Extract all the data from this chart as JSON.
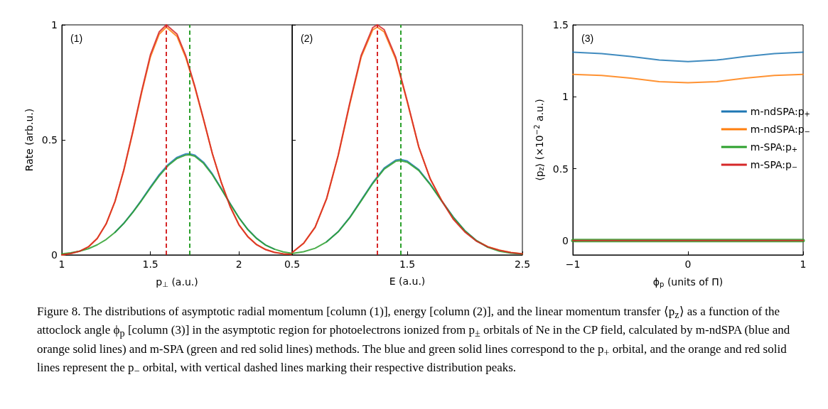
{
  "chart_data": [
    {
      "type": "line",
      "xlabel": "p$_{⊥}$ (a.u.)",
      "ylabel": "Rate (arb.u.)",
      "annotations": [
        "(1)",
        "Figure 8. The distributions of asymptotic radial momentum [column (1)], energy [column (2)], and the linear momentum transfer ⟨p$_{z}$⟩ as a function of the attoclock angle ϕ$_{p}$ [column (3)] in the asymptotic region for photoelectrons ionized from p$_{±}$ orbitals of Ne in the CP field, calculated by m-ndSPA (blue and orange solid lines) and m-SPA (green and red solid lines) methods. The blue and green solid lines correspond to the p$_{+}$ orbital, and the orange and red solid lines represent the p$_{−}$ orbital, with vertical dashed lines marking their respective distribution peaks."
      ],
      "xlim": [
        1,
        2.3
      ],
      "xticks": [
        1,
        1.5,
        2
      ],
      "ylim": [
        0,
        1
      ],
      "yticks": [
        0,
        0.5,
        1
      ],
      "grid": false,
      "legend": false,
      "marker": "none",
      "line_style": "solid",
      "series": [
        {
          "color": "#1f77b4",
          "x": [
            1.3,
            1.35,
            1.4,
            1.45,
            1.5,
            1.55,
            1.6,
            1.65,
            1.7,
            1.72,
            1.75,
            1.8,
            1.85,
            1.9,
            1.95,
            2,
            2.05,
            2.1,
            2.15,
            2.2
          ],
          "values": [
            0.098,
            0.138,
            0.186,
            0.239,
            0.295,
            0.349,
            0.393,
            0.424,
            0.439,
            0.44,
            0.434,
            0.403,
            0.352,
            0.289,
            0.224,
            0.162,
            0.111,
            0.072,
            0.043,
            0.025
          ]
        },
        {
          "color": "#ff7f0e",
          "x": [
            1,
            1.05,
            1.1,
            1.15,
            1.2,
            1.25,
            1.3,
            1.35,
            1.4,
            1.45,
            1.5,
            1.55,
            1.59,
            1.65,
            1.7,
            1.75,
            1.8,
            1.85,
            1.9,
            1.95,
            2,
            2.05,
            2.1,
            2.15,
            2.2,
            2.25,
            2.3
          ],
          "values": [
            0,
            0.006,
            0.016,
            0.035,
            0.072,
            0.134,
            0.231,
            0.367,
            0.53,
            0.703,
            0.86,
            0.96,
            0.99,
            0.95,
            0.857,
            0.73,
            0.587,
            0.44,
            0.316,
            0.212,
            0.132,
            0.08,
            0.045,
            0.024,
            0.012,
            0.005,
            0.002
          ]
        },
        {
          "color": "#2ca02c",
          "x": [
            1,
            1.05,
            1.1,
            1.15,
            1.2,
            1.25,
            1.3,
            1.35,
            1.4,
            1.45,
            1.5,
            1.55,
            1.6,
            1.65,
            1.7,
            1.72,
            1.75,
            1.8,
            1.85,
            1.9,
            1.95,
            2,
            2.05,
            2.1,
            2.15,
            2.2,
            2.25,
            2.3
          ],
          "values": [
            0.005,
            0.009,
            0.016,
            0.027,
            0.044,
            0.067,
            0.098,
            0.137,
            0.184,
            0.236,
            0.291,
            0.344,
            0.388,
            0.419,
            0.434,
            0.435,
            0.429,
            0.398,
            0.348,
            0.286,
            0.222,
            0.161,
            0.11,
            0.071,
            0.043,
            0.025,
            0.013,
            0.007
          ]
        },
        {
          "color": "#d62728",
          "x": [
            1,
            1.05,
            1.1,
            1.15,
            1.2,
            1.25,
            1.3,
            1.35,
            1.4,
            1.45,
            1.5,
            1.55,
            1.59,
            1.65,
            1.7,
            1.75,
            1.8,
            1.85,
            1.9,
            1.95,
            2,
            2.05,
            2.1,
            2.15,
            2.2,
            2.25,
            2.3
          ],
          "values": [
            0,
            0.006,
            0.016,
            0.035,
            0.072,
            0.135,
            0.233,
            0.37,
            0.535,
            0.71,
            0.87,
            0.97,
            1,
            0.96,
            0.865,
            0.735,
            0.59,
            0.44,
            0.315,
            0.21,
            0.13,
            0.079,
            0.044,
            0.023,
            0.011,
            0.005,
            0.002
          ]
        }
      ],
      "ref_lines": [
        {
          "axis": "x",
          "value": 1.59,
          "color": "#d62728",
          "line_style": "dashed"
        },
        {
          "axis": "x",
          "value": 1.72,
          "color": "#2ca02c",
          "line_style": "dashed"
        }
      ]
    },
    {
      "type": "line",
      "xlabel": "E (a.u.)",
      "annotations": [
        "(2)"
      ],
      "xlim": [
        0.5,
        2.5
      ],
      "xticks": [
        0.5,
        1.5,
        2.5
      ],
      "ylim": [
        0,
        1
      ],
      "yticks": [
        0,
        0.5,
        1
      ],
      "tick_labels": "x",
      "grid": false,
      "legend": false,
      "marker": "none",
      "line_style": "solid",
      "series": [
        {
          "color": "#1f77b4",
          "x": [
            0.8,
            0.9,
            1,
            1.1,
            1.2,
            1.3,
            1.4,
            1.44,
            1.5,
            1.6,
            1.7,
            1.8,
            1.9,
            2,
            2.1,
            2.2
          ],
          "values": [
            0.057,
            0.101,
            0.163,
            0.238,
            0.314,
            0.378,
            0.412,
            0.415,
            0.408,
            0.371,
            0.308,
            0.235,
            0.165,
            0.106,
            0.063,
            0.034
          ]
        },
        {
          "color": "#ff7f0e",
          "x": [
            0.5,
            0.6,
            0.7,
            0.8,
            0.9,
            1,
            1.1,
            1.2,
            1.24,
            1.3,
            1.4,
            1.5,
            1.6,
            1.7,
            1.8,
            1.9,
            2,
            2.1,
            2.2,
            2.3,
            2.4,
            2.5
          ],
          "values": [
            0.01,
            0.05,
            0.12,
            0.244,
            0.43,
            0.653,
            0.86,
            0.978,
            0.99,
            0.969,
            0.851,
            0.664,
            0.468,
            0.33,
            0.236,
            0.157,
            0.102,
            0.062,
            0.036,
            0.021,
            0.011,
            0.005
          ]
        },
        {
          "color": "#2ca02c",
          "x": [
            0.5,
            0.6,
            0.7,
            0.8,
            0.9,
            1,
            1.1,
            1.2,
            1.3,
            1.4,
            1.44,
            1.5,
            1.6,
            1.7,
            1.8,
            1.9,
            2,
            2.1,
            2.2,
            2.3,
            2.4,
            2.5
          ],
          "values": [
            0.006,
            0.014,
            0.029,
            0.057,
            0.1,
            0.161,
            0.235,
            0.31,
            0.373,
            0.407,
            0.41,
            0.403,
            0.367,
            0.305,
            0.233,
            0.163,
            0.105,
            0.062,
            0.033,
            0.016,
            0.008,
            0.004
          ]
        },
        {
          "color": "#d62728",
          "x": [
            0.5,
            0.6,
            0.7,
            0.8,
            0.9,
            1,
            1.1,
            1.2,
            1.24,
            1.3,
            1.4,
            1.5,
            1.6,
            1.7,
            1.8,
            1.9,
            2,
            2.1,
            2.2,
            2.3,
            2.4,
            2.5
          ],
          "values": [
            0.01,
            0.051,
            0.121,
            0.246,
            0.433,
            0.659,
            0.868,
            0.988,
            1,
            0.979,
            0.859,
            0.669,
            0.47,
            0.33,
            0.235,
            0.155,
            0.1,
            0.06,
            0.035,
            0.02,
            0.01,
            0.005
          ]
        }
      ],
      "ref_lines": [
        {
          "axis": "x",
          "value": 1.24,
          "color": "#d62728",
          "line_style": "dashed"
        },
        {
          "axis": "x",
          "value": 1.44,
          "color": "#2ca02c",
          "line_style": "dashed"
        }
      ]
    },
    {
      "type": "line",
      "xlabel": "ϕ$_{p}$ (units of Π)",
      "ylabel": "⟨p$_{z}$⟩ (×10$^{−2}$ a.u.)",
      "annotations": [
        "(3)"
      ],
      "xlim": [
        -1,
        1
      ],
      "xticks": [
        -1,
        0,
        1
      ],
      "ylim": [
        -0.1,
        1.5
      ],
      "yticks": [
        0,
        0.5,
        1,
        1.5
      ],
      "grid": false,
      "legend": "right",
      "marker": "none",
      "line_style": "solid",
      "x": [
        -1,
        -0.75,
        -0.5,
        -0.25,
        0,
        0.25,
        0.5,
        0.75,
        1
      ],
      "series": [
        {
          "name": "m-ndSPA:p$_{+}$",
          "color": "#1f77b4",
          "values": [
            1.31,
            1.3,
            1.28,
            1.255,
            1.245,
            1.255,
            1.28,
            1.3,
            1.31
          ]
        },
        {
          "name": "m-ndSPA:p$_{−}$",
          "color": "#ff7f0e",
          "values": [
            1.155,
            1.148,
            1.13,
            1.105,
            1.098,
            1.105,
            1.13,
            1.148,
            1.155
          ]
        },
        {
          "name": "m-SPA:p$_{+}$",
          "color": "#2ca02c",
          "values": [
            0,
            0,
            0,
            0,
            0,
            0,
            0,
            0,
            0
          ]
        },
        {
          "name": "m-SPA:p$_{−}$",
          "color": "#d62728",
          "values": [
            0,
            0,
            0,
            0,
            0,
            0,
            0,
            0,
            0
          ]
        }
      ]
    }
  ]
}
